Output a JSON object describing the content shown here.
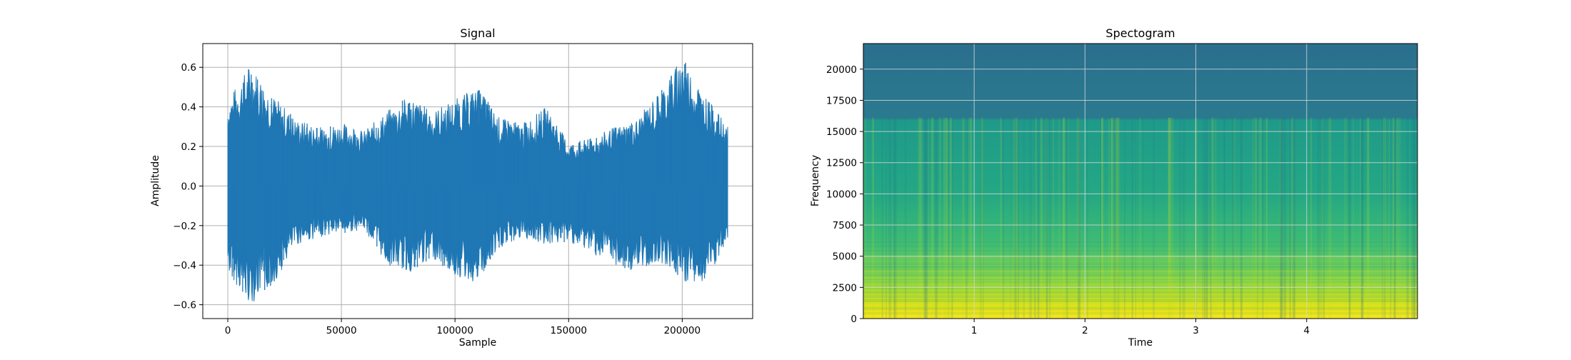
{
  "chart_data": [
    {
      "type": "line",
      "title": "Signal",
      "xlabel": "Sample",
      "ylabel": "Amplitude",
      "xlim": [
        -11000,
        231000
      ],
      "ylim": [
        -0.67,
        0.72
      ],
      "grid": true,
      "line_color": "#1f77b4",
      "x_ticks": [
        0,
        50000,
        100000,
        150000,
        200000
      ],
      "x_tick_labels": [
        "0",
        "50000",
        "100000",
        "150000",
        "200000"
      ],
      "y_ticks": [
        -0.6,
        -0.4,
        -0.2,
        0.0,
        0.2,
        0.4,
        0.6
      ],
      "y_tick_labels": [
        "−0.6",
        "−0.4",
        "−0.2",
        "0.0",
        "0.2",
        "0.4",
        "0.6"
      ],
      "series": [
        {
          "x": [
            0,
            10000,
            20000,
            30000,
            40000,
            50000,
            60000,
            70000,
            80000,
            90000,
            100000,
            110000,
            120000,
            130000,
            140000,
            150000,
            160000,
            170000,
            180000,
            190000,
            200000,
            210000,
            220000
          ],
          "upper": [
            0.44,
            0.62,
            0.46,
            0.34,
            0.3,
            0.32,
            0.28,
            0.38,
            0.46,
            0.38,
            0.44,
            0.5,
            0.34,
            0.32,
            0.4,
            0.22,
            0.24,
            0.3,
            0.34,
            0.48,
            0.66,
            0.46,
            0.3
          ],
          "lower": [
            -0.44,
            -0.6,
            -0.5,
            -0.3,
            -0.26,
            -0.24,
            -0.22,
            -0.4,
            -0.44,
            -0.36,
            -0.46,
            -0.5,
            -0.32,
            -0.26,
            -0.3,
            -0.28,
            -0.34,
            -0.4,
            -0.44,
            -0.38,
            -0.48,
            -0.5,
            -0.3
          ]
        }
      ]
    },
    {
      "type": "heatmap",
      "title": "Spectogram",
      "xlabel": "Time",
      "ylabel": "Frequency",
      "xlim": [
        0,
        5.0
      ],
      "ylim": [
        0,
        22050
      ],
      "grid": true,
      "colormap": "viridis",
      "x_ticks": [
        1,
        2,
        3,
        4
      ],
      "x_tick_labels": [
        "1",
        "2",
        "3",
        "4"
      ],
      "y_ticks": [
        0,
        2500,
        5000,
        7500,
        10000,
        12500,
        15000,
        17500,
        20000
      ],
      "y_tick_labels": [
        "0",
        "2500",
        "5000",
        "7500",
        "10000",
        "12500",
        "15000",
        "17500",
        "20000"
      ],
      "colors": {
        "low": "#2a6f8e",
        "mid": "#22a785",
        "high": "#fde725"
      }
    }
  ]
}
